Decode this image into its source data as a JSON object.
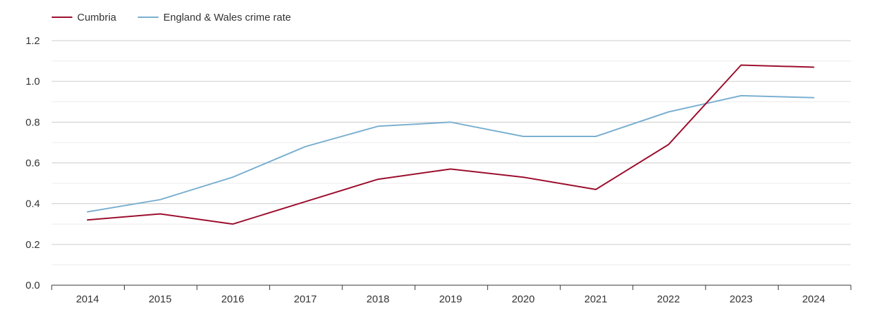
{
  "chart_data": {
    "type": "line",
    "title": "",
    "xlabel": "",
    "ylabel": "",
    "categories": [
      "2014",
      "2015",
      "2016",
      "2017",
      "2018",
      "2019",
      "2020",
      "2021",
      "2022",
      "2023",
      "2024"
    ],
    "series": [
      {
        "name": "Cumbria",
        "color": "#9b0d2c",
        "values": [
          0.32,
          0.35,
          0.3,
          0.41,
          0.52,
          0.57,
          0.53,
          0.47,
          0.69,
          1.08,
          1.07
        ]
      },
      {
        "name": "England & Wales crime rate",
        "color": "#79afd0",
        "values": [
          0.36,
          0.42,
          0.53,
          0.68,
          0.78,
          0.8,
          0.73,
          0.73,
          0.85,
          0.93,
          0.92
        ]
      }
    ],
    "ylim": [
      0,
      1.2
    ],
    "y_ticks": [
      "0.0",
      "0.2",
      "0.4",
      "0.6",
      "0.8",
      "1.0",
      "1.2"
    ],
    "grid": true,
    "legend": "top-left"
  }
}
